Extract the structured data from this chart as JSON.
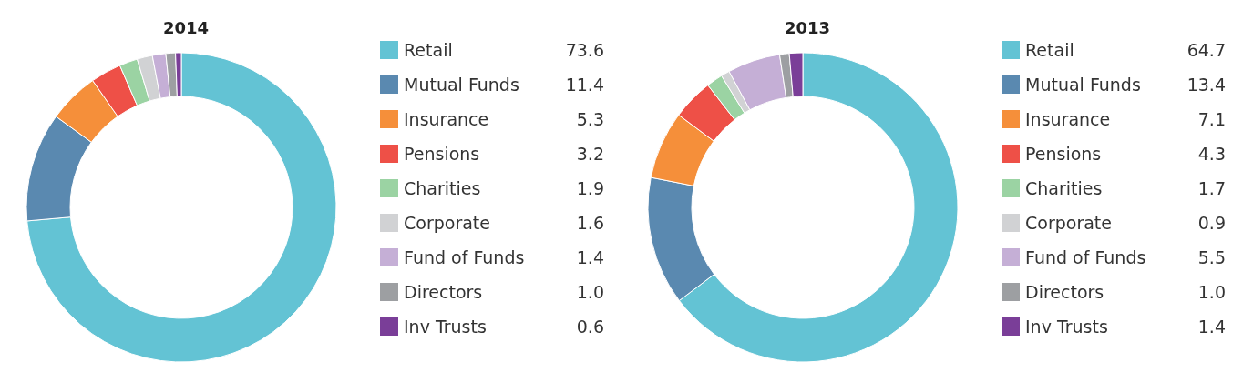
{
  "chart_data": [
    {
      "type": "donut",
      "title": "2014",
      "categories": [
        "Retail",
        "Mutual Funds",
        "Insurance",
        "Pensions",
        "Charities",
        "Corporate",
        "Fund of Funds",
        "Directors",
        "Inv Trusts"
      ],
      "values": [
        73.6,
        11.4,
        5.3,
        3.2,
        1.9,
        1.6,
        1.4,
        1.0,
        0.6
      ],
      "value_labels": [
        "73.6",
        "11.4",
        "5.3",
        "3.2",
        "1.9",
        "1.6",
        "1.4",
        "1.0",
        "0.6"
      ],
      "colors": [
        "#63c3d4",
        "#5a89b0",
        "#f58f3a",
        "#ee5047",
        "#9bd3a3",
        "#d1d2d4",
        "#c5afd6",
        "#9d9fa2",
        "#7a3e98"
      ],
      "legend": "right"
    },
    {
      "type": "donut",
      "title": "2013",
      "categories": [
        "Retail",
        "Mutual Funds",
        "Insurance",
        "Pensions",
        "Charities",
        "Corporate",
        "Fund of Funds",
        "Directors",
        "Inv Trusts"
      ],
      "values": [
        64.7,
        13.4,
        7.1,
        4.3,
        1.7,
        0.9,
        5.5,
        1.0,
        1.4
      ],
      "value_labels": [
        "64.7",
        "13.4",
        "7.1",
        "4.3",
        "1.7",
        "0.9",
        "5.5",
        "1.0",
        "1.4"
      ],
      "colors": [
        "#63c3d4",
        "#5a89b0",
        "#f58f3a",
        "#ee5047",
        "#9bd3a3",
        "#d1d2d4",
        "#c5afd6",
        "#9d9fa2",
        "#7a3e98"
      ],
      "legend": "right"
    }
  ]
}
